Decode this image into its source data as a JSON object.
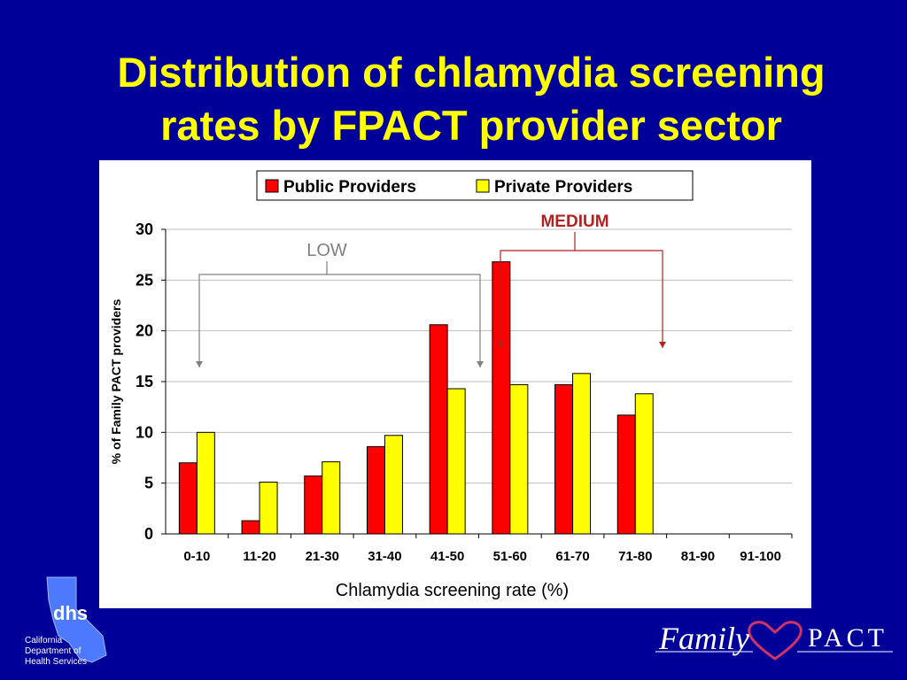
{
  "slide": {
    "title_line1": "Distribution of chlamydia screening",
    "title_line2": "rates by FPACT provider sector"
  },
  "colors": {
    "background": "#000099",
    "title": "#FFFF00",
    "public": "#FF0000",
    "private": "#FFFF00",
    "low_bracket": "#808080",
    "medium_bracket": "#B22222"
  },
  "chart_data": {
    "type": "bar",
    "categories": [
      "0-10",
      "11-20",
      "21-30",
      "31-40",
      "41-50",
      "51-60",
      "61-70",
      "71-80",
      "81-90",
      "91-100"
    ],
    "series": [
      {
        "name": "Public Providers",
        "values": [
          7.0,
          1.3,
          5.7,
          8.6,
          20.6,
          26.8,
          14.7,
          11.7,
          0,
          0
        ]
      },
      {
        "name": "Private Providers",
        "values": [
          10.0,
          5.1,
          7.1,
          9.7,
          14.3,
          14.7,
          15.8,
          13.8,
          0,
          0
        ]
      }
    ],
    "xlabel": "Chlamydia screening rate (%)",
    "ylabel": "% of Family PACT providers",
    "ylim": [
      0,
      30
    ],
    "yticks": [
      0,
      5,
      10,
      15,
      20,
      25,
      30
    ],
    "grid": true,
    "legend_position": "top-center",
    "annotations": [
      {
        "label": "LOW",
        "from_category": "0-10",
        "to_category": "41-50"
      },
      {
        "label": "MEDIUM",
        "from_category": "51-60",
        "to_category": "71-80"
      }
    ]
  },
  "logos": {
    "dhs_mark": "dhs",
    "dhs_lines": [
      "California",
      "Department of",
      "Health Services"
    ],
    "fp_family": "Family",
    "fp_pact": "PACT",
    "heart_icon": "heart-icon"
  }
}
